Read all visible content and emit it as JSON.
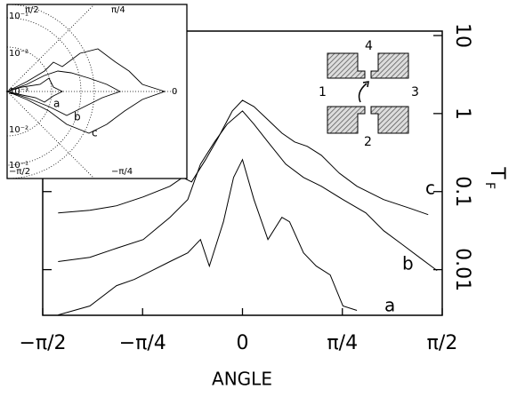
{
  "chart_data": {
    "type": "line",
    "x_label": "ANGLE",
    "y_label": "T",
    "y_label_sub": "F",
    "log_y": true,
    "xlim": [
      -1.5708,
      1.5708
    ],
    "xticks": [
      {
        "value": -1.5708,
        "label": "−π/2"
      },
      {
        "value": -0.7854,
        "label": "−π/4"
      },
      0,
      {
        "value": 0.7854,
        "label": "π/4"
      },
      {
        "value": 1.5708,
        "label": "π/2"
      }
    ],
    "ylim": [
      0.0026,
      11.4
    ],
    "yticks": [
      0.01,
      0.1,
      1,
      10
    ],
    "series": [
      {
        "name": "c",
        "color": "#000000",
        "x": [
          -1.45,
          -1.2,
          -0.99,
          -0.78,
          -0.57,
          -0.47,
          -0.4,
          -0.29,
          -0.19,
          -0.08,
          0,
          0.09,
          0.2,
          0.31,
          0.41,
          0.51,
          0.62,
          0.76,
          0.9,
          1.11,
          1.32,
          1.46
        ],
        "values": [
          0.0534,
          0.0577,
          0.0658,
          0.0855,
          0.117,
          0.152,
          0.133,
          0.257,
          0.493,
          1.08,
          1.48,
          1.23,
          0.832,
          0.562,
          0.433,
          0.38,
          0.292,
          0.173,
          0.117,
          0.0791,
          0.0608,
          0.0507
        ]
      },
      {
        "name": "b",
        "color": "#000000",
        "x": [
          -1.45,
          -1.2,
          -0.99,
          -0.78,
          -0.57,
          -0.43,
          -0.33,
          -0.22,
          -0.12,
          0,
          0.09,
          0.2,
          0.34,
          0.48,
          0.62,
          0.79,
          0.97,
          1.11,
          1.25,
          1.39,
          1.53
        ],
        "values": [
          0.0127,
          0.0144,
          0.0188,
          0.0243,
          0.0468,
          0.0791,
          0.225,
          0.433,
          0.731,
          1.08,
          0.731,
          0.433,
          0.225,
          0.152,
          0.117,
          0.0791,
          0.0534,
          0.0316,
          0.0214,
          0.0144,
          0.00975
        ]
      },
      {
        "name": "a",
        "color": "#000000",
        "x": [
          -1.45,
          -1.2,
          -0.99,
          -0.85,
          -0.71,
          -0.57,
          -0.43,
          -0.33,
          -0.26,
          -0.15,
          -0.07,
          0,
          0.09,
          0.2,
          0.31,
          0.37,
          0.48,
          0.58,
          0.69,
          0.79,
          0.9
        ],
        "values": [
          0.00263,
          0.00342,
          0.00624,
          0.0075,
          0.00975,
          0.0127,
          0.0164,
          0.0243,
          0.0111,
          0.0411,
          0.152,
          0.257,
          0.0791,
          0.0243,
          0.0468,
          0.0411,
          0.0164,
          0.0111,
          0.00855,
          0.00342,
          0.003
        ]
      }
    ]
  },
  "inset": {
    "angle_labels": [
      "π/2",
      "π/4",
      "0",
      "−π/2",
      "−π/4"
    ],
    "radial_labels": [
      "10⁻¹",
      "10⁻²",
      "10⁻³",
      "10⁻²",
      "10⁻¹"
    ],
    "curve_labels": [
      "a",
      "b",
      "c"
    ]
  },
  "schematic": {
    "ports": [
      "1",
      "2",
      "3",
      "4"
    ]
  }
}
